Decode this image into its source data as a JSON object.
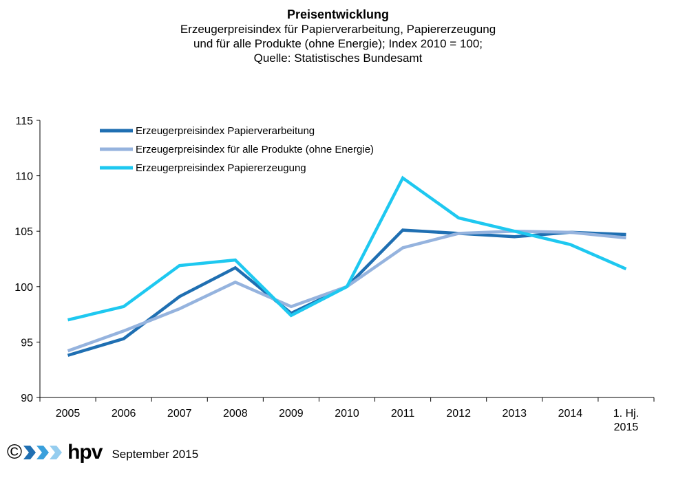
{
  "title": "Preisentwicklung",
  "subtitle_lines": [
    "Erzeugerpreisindex für Papierverarbeitung, Papiererzeugung",
    "und für alle Produkte (ohne Energie); Index 2010 = 100;",
    "Quelle: Statistisches Bundesamt"
  ],
  "footer": {
    "copyright": "©",
    "logo": "hpv",
    "date": "September 2015"
  },
  "chart_data": {
    "type": "line",
    "categories": [
      "2005",
      "2006",
      "2007",
      "2008",
      "2009",
      "2010",
      "2011",
      "2012",
      "2013",
      "2014",
      "1. Hj. 2015"
    ],
    "ylim": [
      90,
      115
    ],
    "yticks": [
      90,
      95,
      100,
      105,
      110,
      115
    ],
    "grid": false,
    "legend_position": "top-left",
    "series": [
      {
        "name": "Erzeugerpreisindex Papierverarbeitung",
        "color": "#1f6fb2",
        "values": [
          93.8,
          95.3,
          99.1,
          101.7,
          97.6,
          100.0,
          105.1,
          104.8,
          104.5,
          104.9,
          104.7
        ]
      },
      {
        "name": "Erzeugerpreisindex für alle Produkte (ohne Energie)",
        "color": "#95b3de",
        "values": [
          94.2,
          96.0,
          98.0,
          100.4,
          98.2,
          100.0,
          103.5,
          104.8,
          105.0,
          104.9,
          104.4
        ]
      },
      {
        "name": "Erzeugerpreisindex Papiererzeugung",
        "color": "#1ec8f0",
        "values": [
          97.0,
          98.2,
          101.9,
          102.4,
          97.4,
          100.0,
          109.8,
          106.2,
          105.0,
          103.8,
          101.6
        ]
      }
    ]
  }
}
